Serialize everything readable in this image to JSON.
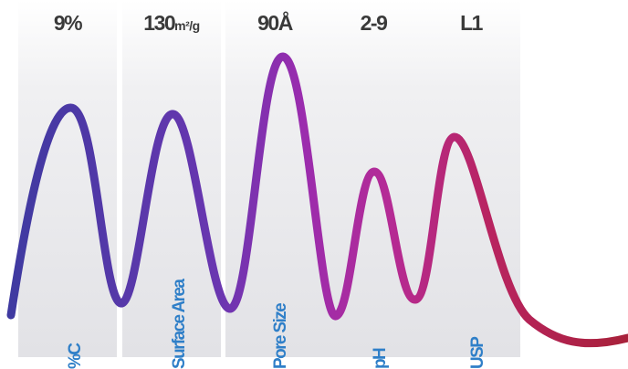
{
  "parameters": [
    {
      "value": "9%",
      "value_main": "9%",
      "value_unit": "",
      "label": "%C"
    },
    {
      "value": "130m²/g",
      "value_main": "130",
      "value_unit": "m²/g",
      "label": "Surface Area"
    },
    {
      "value": "90Å",
      "value_main": "90Å",
      "value_unit": "",
      "label": "Pore Size"
    },
    {
      "value": "2-9",
      "value_main": "2-9",
      "value_unit": "",
      "label": "pH"
    },
    {
      "value": "L1",
      "value_main": "L1",
      "value_unit": "",
      "label": "USP"
    }
  ],
  "colors": {
    "value_text": "#3a3a3a",
    "param_text": "#2f7fc8",
    "wave_start": "#3d3aa0",
    "wave_mid": "#8a2db0",
    "wave_end": "#b0243c"
  }
}
